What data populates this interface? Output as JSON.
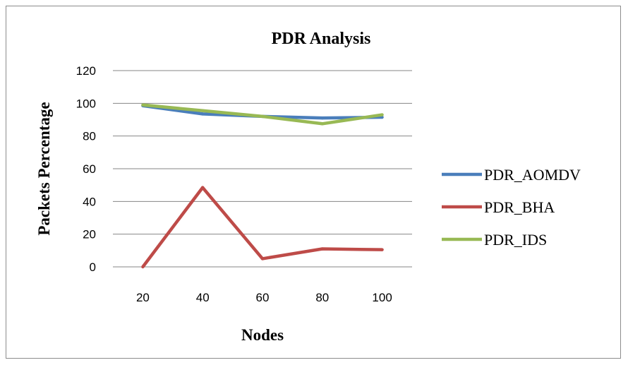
{
  "chart_data": {
    "type": "line",
    "title": "PDR Analysis",
    "xlabel": "Nodes",
    "ylabel": "Packets Percentage",
    "categories": [
      "20",
      "40",
      "60",
      "80",
      "100"
    ],
    "ylim": [
      0,
      120
    ],
    "yticks": [
      0,
      20,
      40,
      60,
      80,
      100,
      120
    ],
    "grid": "horizontal",
    "legend": "right",
    "series": [
      {
        "name": "PDR_AOMDV",
        "color": "#4a7ebb",
        "values": [
          98.5,
          93.5,
          92,
          91,
          91.5
        ]
      },
      {
        "name": "PDR_BHA",
        "color": "#be4b48",
        "values": [
          0,
          48.5,
          5,
          11,
          10.5
        ]
      },
      {
        "name": "PDR_IDS",
        "color": "#98b954",
        "values": [
          99,
          95.5,
          92,
          87.5,
          93
        ]
      }
    ]
  }
}
